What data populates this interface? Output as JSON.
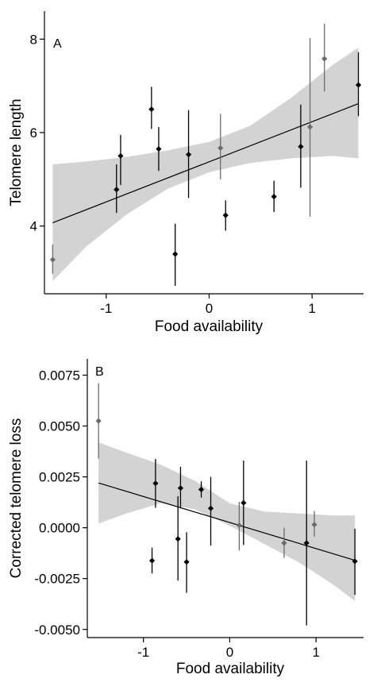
{
  "chart_data": [
    {
      "type": "scatter",
      "panel_label": "A",
      "xlabel": "Food availability",
      "ylabel": "Telomere length",
      "xlim": [
        -1.6,
        1.5
      ],
      "ylim": [
        2.55,
        8.6
      ],
      "xticks": [
        -1,
        0,
        1
      ],
      "xtick_labels": [
        "-1",
        "0",
        "1"
      ],
      "yticks": [
        4,
        6,
        8
      ],
      "ytick_labels": [
        "4",
        "6",
        "8"
      ],
      "grid": false,
      "fit": {
        "x": [
          -1.52,
          1.45
        ],
        "y": [
          4.07,
          6.62
        ]
      },
      "band": {
        "x": [
          -1.52,
          -1.2,
          -0.8,
          -0.4,
          0.0,
          0.4,
          0.8,
          1.2,
          1.45
        ],
        "lower": [
          2.82,
          3.55,
          4.25,
          4.8,
          5.15,
          5.35,
          5.45,
          5.5,
          5.45
        ],
        "upper": [
          5.32,
          5.38,
          5.48,
          5.62,
          5.8,
          6.15,
          6.75,
          7.45,
          7.82
        ]
      },
      "points": [
        {
          "x": -1.52,
          "y": 3.28,
          "lo": 2.98,
          "hi": 3.6,
          "color": "#6b6b6b"
        },
        {
          "x": -0.9,
          "y": 4.78,
          "lo": 4.28,
          "hi": 5.32,
          "color": "#000000"
        },
        {
          "x": -0.86,
          "y": 5.5,
          "lo": 4.88,
          "hi": 5.95,
          "color": "#000000"
        },
        {
          "x": -0.56,
          "y": 6.5,
          "lo": 6.08,
          "hi": 6.98,
          "color": "#000000"
        },
        {
          "x": -0.49,
          "y": 5.65,
          "lo": 5.18,
          "hi": 6.12,
          "color": "#000000"
        },
        {
          "x": -0.33,
          "y": 3.4,
          "lo": 2.72,
          "hi": 4.05,
          "color": "#000000"
        },
        {
          "x": -0.2,
          "y": 5.53,
          "lo": 4.6,
          "hi": 6.48,
          "color": "#000000"
        },
        {
          "x": 0.11,
          "y": 5.67,
          "lo": 5.0,
          "hi": 6.4,
          "color": "#6b6b6b"
        },
        {
          "x": 0.16,
          "y": 4.23,
          "lo": 3.9,
          "hi": 4.55,
          "color": "#000000"
        },
        {
          "x": 0.63,
          "y": 4.63,
          "lo": 4.3,
          "hi": 4.97,
          "color": "#000000"
        },
        {
          "x": 0.89,
          "y": 5.7,
          "lo": 4.82,
          "hi": 6.6,
          "color": "#000000"
        },
        {
          "x": 0.98,
          "y": 6.12,
          "lo": 4.2,
          "hi": 8.02,
          "color": "#6b6b6b"
        },
        {
          "x": 1.12,
          "y": 7.58,
          "lo": 6.88,
          "hi": 8.33,
          "color": "#6b6b6b"
        },
        {
          "x": 1.45,
          "y": 7.02,
          "lo": 6.35,
          "hi": 7.72,
          "color": "#000000"
        }
      ]
    },
    {
      "type": "scatter",
      "panel_label": "B",
      "xlabel": "Food availability",
      "ylabel": "Corrected telomere loss",
      "xlim": [
        -1.65,
        1.55
      ],
      "ylim": [
        -0.0054,
        0.0083
      ],
      "xticks": [
        -1,
        0,
        1
      ],
      "xtick_labels": [
        "-1",
        "0",
        "1"
      ],
      "yticks": [
        -0.005,
        -0.0025,
        0.0,
        0.0025,
        0.005,
        0.0075
      ],
      "ytick_labels": [
        "-0.0050",
        "-0.0025",
        "0.0000",
        "0.0025",
        "0.0050",
        "0.0075"
      ],
      "grid": false,
      "fit": {
        "x": [
          -1.52,
          1.45
        ],
        "y": [
          0.0022,
          -0.0016
        ]
      },
      "band": {
        "x": [
          -1.52,
          -1.2,
          -0.8,
          -0.4,
          0.0,
          0.4,
          0.8,
          1.2,
          1.45
        ],
        "lower": [
          0.0002,
          0.0007,
          0.0012,
          0.0009,
          0.0001,
          -0.0008,
          -0.0017,
          -0.0028,
          -0.0036
        ],
        "upper": [
          0.0042,
          0.0037,
          0.0031,
          0.0023,
          0.0012,
          0.0008,
          0.0007,
          0.0006,
          0.0006
        ]
      },
      "points": [
        {
          "x": -1.52,
          "y": 0.00525,
          "lo": 0.0034,
          "hi": 0.0071,
          "color": "#6b6b6b"
        },
        {
          "x": -0.9,
          "y": -0.00162,
          "lo": -0.00225,
          "hi": -0.00098,
          "color": "#000000"
        },
        {
          "x": -0.86,
          "y": 0.00218,
          "lo": 0.00098,
          "hi": 0.00338,
          "color": "#000000"
        },
        {
          "x": -0.6,
          "y": -0.00055,
          "lo": -0.0026,
          "hi": 0.00155,
          "color": "#000000"
        },
        {
          "x": -0.57,
          "y": 0.00195,
          "lo": 0.00095,
          "hi": 0.003,
          "color": "#000000"
        },
        {
          "x": -0.5,
          "y": -0.00168,
          "lo": -0.0032,
          "hi": -0.00022,
          "color": "#000000"
        },
        {
          "x": -0.33,
          "y": 0.00188,
          "lo": 0.00148,
          "hi": 0.00228,
          "color": "#000000"
        },
        {
          "x": -0.22,
          "y": 0.00095,
          "lo": -0.00088,
          "hi": 0.0025,
          "color": "#000000"
        },
        {
          "x": 0.11,
          "y": 0.00012,
          "lo": -0.00112,
          "hi": 0.00128,
          "color": "#6b6b6b"
        },
        {
          "x": 0.16,
          "y": 0.00122,
          "lo": -0.00085,
          "hi": 0.0033,
          "color": "#000000"
        },
        {
          "x": 0.63,
          "y": -0.00075,
          "lo": -0.00148,
          "hi": 0.0,
          "color": "#6b6b6b"
        },
        {
          "x": 0.89,
          "y": -0.00075,
          "lo": -0.0048,
          "hi": 0.0033,
          "color": "#000000"
        },
        {
          "x": 0.98,
          "y": 0.00015,
          "lo": -0.00045,
          "hi": 0.00082,
          "color": "#6b6b6b"
        },
        {
          "x": 1.45,
          "y": -0.00165,
          "lo": -0.0033,
          "hi": -5e-05,
          "color": "#000000"
        }
      ]
    }
  ]
}
